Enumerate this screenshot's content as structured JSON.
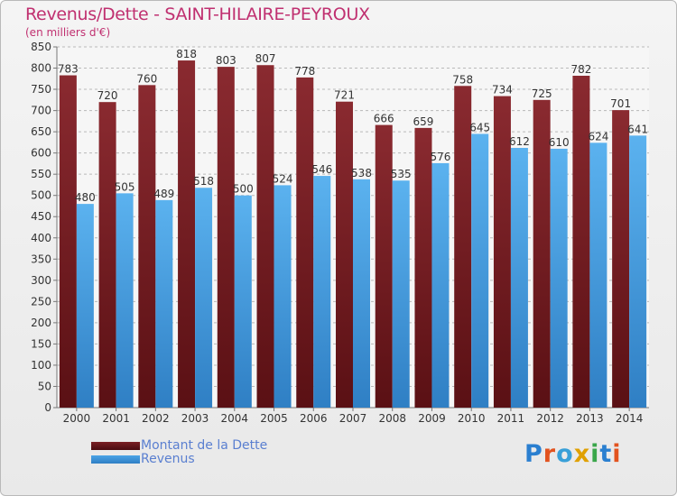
{
  "title": "Revenus/Dette - SAINT-HILAIRE-PEYROUX",
  "subtitle": "(en milliers d'€)",
  "logo": {
    "letters": [
      "P",
      "r",
      "o",
      "x",
      "i",
      "t",
      "i"
    ],
    "colors": [
      "#2a7fd0",
      "#e2531f",
      "#39a0d8",
      "#e0a000",
      "#3aa64a",
      "#2a7fd0",
      "#e2531f"
    ]
  },
  "colors": {
    "dette": "#7a1f24",
    "revenus": "#4aa3e6",
    "title": "#c03070",
    "legend_text": "#5a7fd0"
  },
  "legend": [
    {
      "label": "Montant de la Dette",
      "series": "dette"
    },
    {
      "label": "Revenus",
      "series": "revenus"
    }
  ],
  "chart_data": {
    "type": "bar",
    "title": "Revenus/Dette - SAINT-HILAIRE-PEYROUX",
    "ylabel": "(en milliers d'€)",
    "ylim": [
      0,
      850
    ],
    "yticks": [
      0,
      50,
      100,
      150,
      200,
      250,
      300,
      350,
      400,
      450,
      500,
      550,
      600,
      650,
      700,
      750,
      800,
      850
    ],
    "categories": [
      "2000",
      "2001",
      "2002",
      "2003",
      "2004",
      "2005",
      "2006",
      "2007",
      "2008",
      "2009",
      "2010",
      "2011",
      "2012",
      "2013",
      "2014"
    ],
    "series": [
      {
        "name": "Montant de la Dette",
        "key": "dette",
        "values": [
          783,
          720,
          760,
          818,
          803,
          807,
          778,
          721,
          666,
          659,
          758,
          734,
          725,
          782,
          701
        ]
      },
      {
        "name": "Revenus",
        "key": "revenus",
        "values": [
          480,
          505,
          489,
          518,
          500,
          524,
          546,
          538,
          535,
          576,
          645,
          612,
          610,
          624,
          641
        ]
      }
    ],
    "grid": true,
    "legend_position": "bottom-left"
  }
}
